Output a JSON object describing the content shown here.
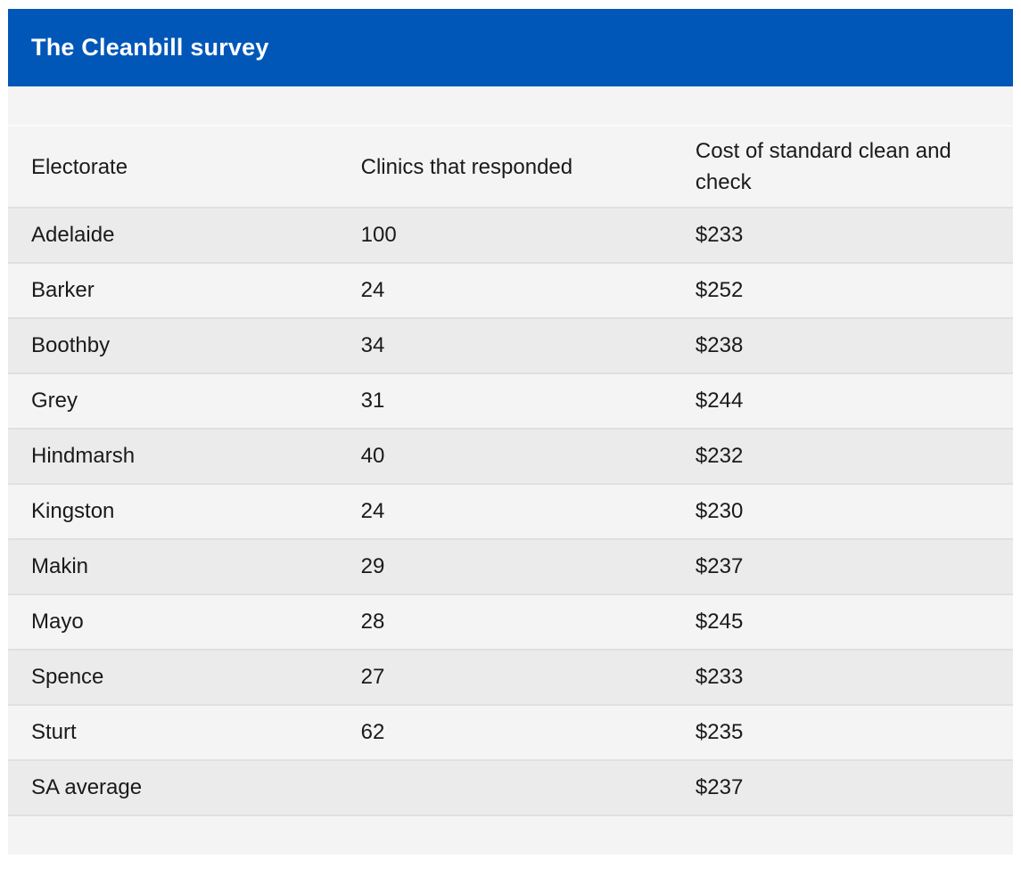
{
  "title": "The Cleanbill survey",
  "colors": {
    "header_bar_bg": "#0057b8",
    "title_text": "#ffffff",
    "card_bg": "#f4f4f4",
    "row_alt_bg": "#ebebeb",
    "divider_color": "#e0e0e0",
    "text_color": "#1a1a1a"
  },
  "table": {
    "columns": [
      "Electorate",
      "Clinics that responded",
      "Cost of standard clean and check"
    ],
    "rows": [
      {
        "electorate": "Adelaide",
        "clinics": "100",
        "cost": "$233"
      },
      {
        "electorate": "Barker",
        "clinics": "24",
        "cost": "$252"
      },
      {
        "electorate": "Boothby",
        "clinics": "34",
        "cost": "$238"
      },
      {
        "electorate": "Grey",
        "clinics": "31",
        "cost": "$244"
      },
      {
        "electorate": "Hindmarsh",
        "clinics": "40",
        "cost": "$232"
      },
      {
        "electorate": "Kingston",
        "clinics": "24",
        "cost": "$230"
      },
      {
        "electorate": "Makin",
        "clinics": "29",
        "cost": "$237"
      },
      {
        "electorate": "Mayo",
        "clinics": "28",
        "cost": "$245"
      },
      {
        "electorate": "Spence",
        "clinics": "27",
        "cost": "$233"
      },
      {
        "electorate": "Sturt",
        "clinics": "62",
        "cost": "$235"
      },
      {
        "electorate": "SA average",
        "clinics": "",
        "cost": "$237"
      }
    ]
  },
  "chart_data": {
    "type": "table",
    "title": "The Cleanbill survey",
    "columns": [
      "Electorate",
      "Clinics that responded",
      "Cost of standard clean and check"
    ],
    "rows": [
      [
        "Adelaide",
        100,
        "$233"
      ],
      [
        "Barker",
        24,
        "$252"
      ],
      [
        "Boothby",
        34,
        "$238"
      ],
      [
        "Grey",
        31,
        "$244"
      ],
      [
        "Hindmarsh",
        40,
        "$232"
      ],
      [
        "Kingston",
        24,
        "$230"
      ],
      [
        "Makin",
        29,
        "$237"
      ],
      [
        "Mayo",
        28,
        "$245"
      ],
      [
        "Spence",
        27,
        "$233"
      ],
      [
        "Sturt",
        62,
        "$235"
      ],
      [
        "SA average",
        null,
        "$237"
      ]
    ],
    "notes": "Zebra-striped table; SA average row has no clinics value; costs in AUD"
  }
}
